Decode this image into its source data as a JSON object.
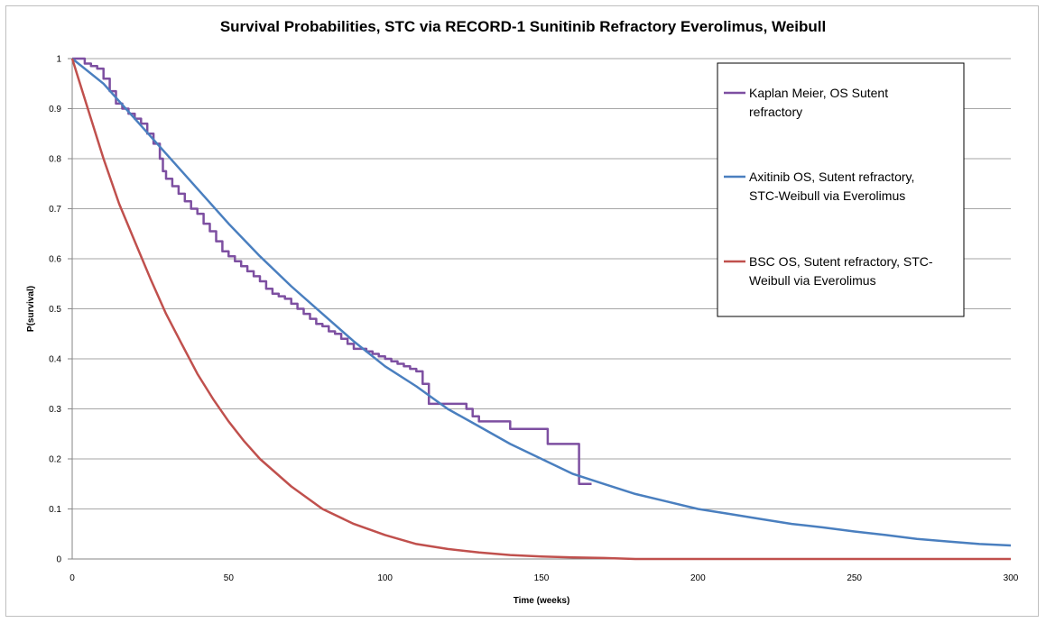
{
  "chart_data": {
    "type": "line",
    "title": "Survival Probabilities, STC via RECORD-1 Sunitinib Refractory Everolimus, Weibull",
    "xlabel": "Time (weeks)",
    "ylabel": "P(survival)",
    "xlim": [
      0,
      300
    ],
    "ylim": [
      0,
      1
    ],
    "xticks": [
      0,
      50,
      100,
      150,
      200,
      250,
      300
    ],
    "xtick_labels": [
      "0",
      "50",
      "100",
      "150",
      "200",
      "250",
      "300"
    ],
    "yticks": [
      0,
      0.1,
      0.2,
      0.3,
      0.4,
      0.5,
      0.6,
      0.7,
      0.8,
      0.9,
      1
    ],
    "ytick_labels": [
      "0",
      "0.1",
      "0.2",
      "0.3",
      "0.4",
      "0.5",
      "0.6",
      "0.7",
      "0.8",
      "0.9",
      "1"
    ],
    "grid": "horizontal",
    "legend_position": "top-right",
    "series": [
      {
        "name": "Kaplan Meier, OS Sutent refractory",
        "legend_lines": [
          "Kaplan Meier, OS Sutent",
          "refractory"
        ],
        "color": "#7d4fa1",
        "step": true,
        "points": [
          [
            0,
            1.0
          ],
          [
            4,
            0.99
          ],
          [
            6,
            0.985
          ],
          [
            8,
            0.98
          ],
          [
            10,
            0.96
          ],
          [
            12,
            0.935
          ],
          [
            14,
            0.91
          ],
          [
            16,
            0.9
          ],
          [
            18,
            0.89
          ],
          [
            20,
            0.88
          ],
          [
            22,
            0.87
          ],
          [
            24,
            0.85
          ],
          [
            26,
            0.83
          ],
          [
            28,
            0.8
          ],
          [
            29,
            0.775
          ],
          [
            30,
            0.76
          ],
          [
            32,
            0.745
          ],
          [
            34,
            0.73
          ],
          [
            36,
            0.715
          ],
          [
            38,
            0.7
          ],
          [
            40,
            0.69
          ],
          [
            42,
            0.67
          ],
          [
            44,
            0.655
          ],
          [
            46,
            0.635
          ],
          [
            48,
            0.615
          ],
          [
            50,
            0.605
          ],
          [
            52,
            0.595
          ],
          [
            54,
            0.585
          ],
          [
            56,
            0.575
          ],
          [
            58,
            0.565
          ],
          [
            60,
            0.555
          ],
          [
            62,
            0.54
          ],
          [
            64,
            0.53
          ],
          [
            66,
            0.525
          ],
          [
            68,
            0.52
          ],
          [
            70,
            0.51
          ],
          [
            72,
            0.5
          ],
          [
            74,
            0.49
          ],
          [
            76,
            0.48
          ],
          [
            78,
            0.47
          ],
          [
            80,
            0.465
          ],
          [
            82,
            0.455
          ],
          [
            84,
            0.45
          ],
          [
            86,
            0.44
          ],
          [
            88,
            0.43
          ],
          [
            90,
            0.42
          ],
          [
            94,
            0.415
          ],
          [
            96,
            0.41
          ],
          [
            98,
            0.405
          ],
          [
            100,
            0.4
          ],
          [
            102,
            0.395
          ],
          [
            104,
            0.39
          ],
          [
            106,
            0.385
          ],
          [
            108,
            0.38
          ],
          [
            110,
            0.375
          ],
          [
            112,
            0.35
          ],
          [
            114,
            0.31
          ],
          [
            120,
            0.31
          ],
          [
            126,
            0.3
          ],
          [
            128,
            0.285
          ],
          [
            130,
            0.275
          ],
          [
            140,
            0.26
          ],
          [
            152,
            0.23
          ],
          [
            162,
            0.15
          ],
          [
            166,
            0.15
          ]
        ]
      },
      {
        "name": "Axitinib OS, Sutent refractory, STC-Weibull via Everolimus",
        "legend_lines": [
          "Axitinib OS,  Sutent refractory,",
          "STC-Weibull via Everolimus"
        ],
        "color": "#4a7fbf",
        "step": false,
        "points": [
          [
            0,
            1.0
          ],
          [
            10,
            0.95
          ],
          [
            20,
            0.88
          ],
          [
            30,
            0.81
          ],
          [
            40,
            0.74
          ],
          [
            50,
            0.67
          ],
          [
            60,
            0.605
          ],
          [
            70,
            0.545
          ],
          [
            80,
            0.49
          ],
          [
            90,
            0.435
          ],
          [
            100,
            0.385
          ],
          [
            110,
            0.345
          ],
          [
            120,
            0.3
          ],
          [
            130,
            0.265
          ],
          [
            140,
            0.23
          ],
          [
            150,
            0.2
          ],
          [
            160,
            0.17
          ],
          [
            170,
            0.15
          ],
          [
            180,
            0.13
          ],
          [
            190,
            0.115
          ],
          [
            200,
            0.1
          ],
          [
            210,
            0.09
          ],
          [
            220,
            0.08
          ],
          [
            230,
            0.07
          ],
          [
            240,
            0.063
          ],
          [
            250,
            0.055
          ],
          [
            260,
            0.048
          ],
          [
            270,
            0.04
          ],
          [
            280,
            0.035
          ],
          [
            290,
            0.03
          ],
          [
            300,
            0.027
          ]
        ]
      },
      {
        "name": "BSC OS, Sutent refractory, STC-Weibull via Everolimus",
        "legend_lines": [
          "BSC OS, Sutent refractory, STC-",
          "Weibull via Everolimus"
        ],
        "color": "#c0504d",
        "step": false,
        "points": [
          [
            0,
            1.0
          ],
          [
            5,
            0.9
          ],
          [
            10,
            0.8
          ],
          [
            15,
            0.71
          ],
          [
            20,
            0.635
          ],
          [
            25,
            0.56
          ],
          [
            30,
            0.49
          ],
          [
            35,
            0.43
          ],
          [
            40,
            0.37
          ],
          [
            45,
            0.32
          ],
          [
            50,
            0.275
          ],
          [
            55,
            0.235
          ],
          [
            60,
            0.2
          ],
          [
            70,
            0.145
          ],
          [
            80,
            0.1
          ],
          [
            90,
            0.07
          ],
          [
            100,
            0.048
          ],
          [
            110,
            0.03
          ],
          [
            120,
            0.02
          ],
          [
            130,
            0.013
          ],
          [
            140,
            0.008
          ],
          [
            150,
            0.005
          ],
          [
            160,
            0.003
          ],
          [
            170,
            0.002
          ],
          [
            180,
            0.0
          ],
          [
            300,
            0.0
          ]
        ]
      }
    ]
  }
}
